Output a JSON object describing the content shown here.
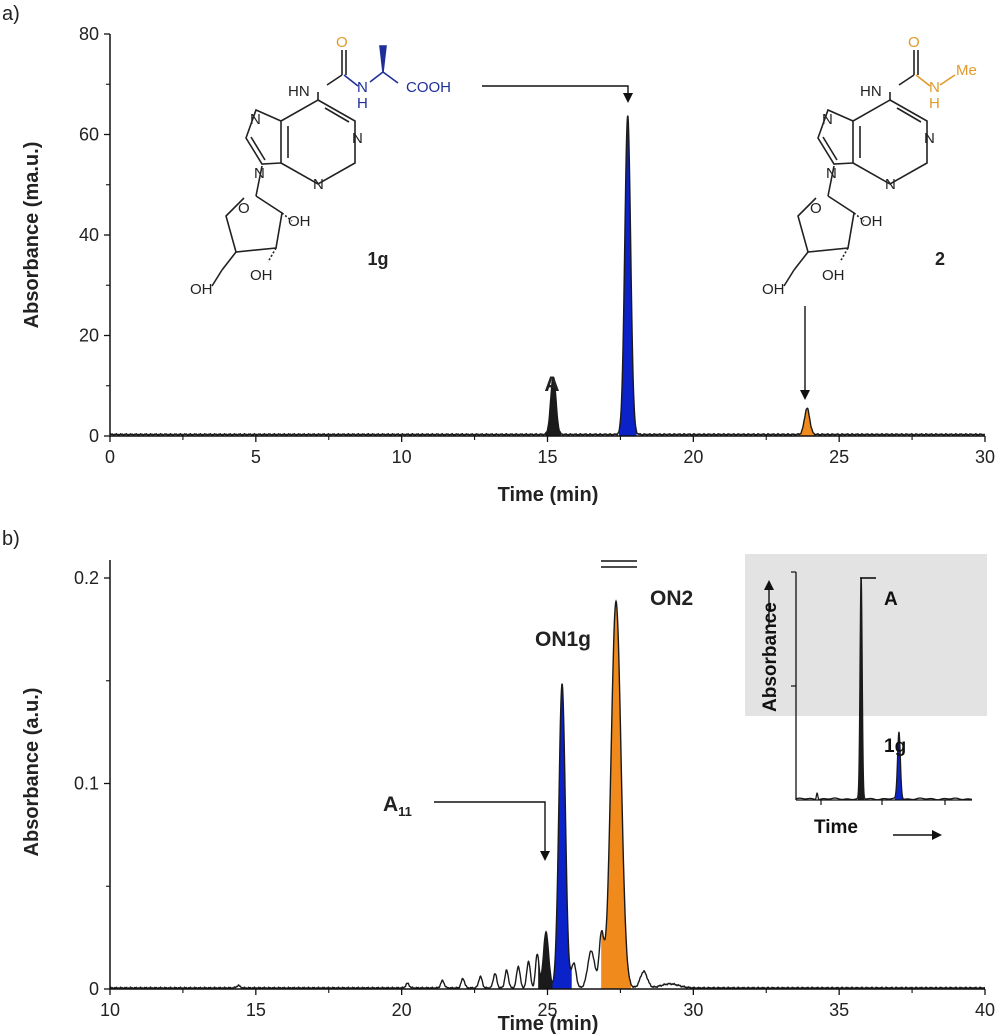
{
  "colors": {
    "trace": "#1a1a1a",
    "blue": "#0a22c8",
    "orange": "#f08a1c",
    "struct_blue": "#1f2f99",
    "struct_orange": "#e09a2a",
    "inset_bg": "#e3e3e3"
  },
  "chart_data": [
    {
      "panel": "a)",
      "type": "line",
      "xlabel": "Time (min)",
      "ylabel": "Absorbance (ma.u.)",
      "xlim": [
        0,
        30
      ],
      "ylim": [
        0,
        80
      ],
      "xticks": [
        0,
        5,
        10,
        15,
        20,
        25,
        30
      ],
      "yticks": [
        0,
        20,
        40,
        60,
        80
      ],
      "baseline": 0.3,
      "peaks": [
        {
          "label": "A",
          "x": 15.2,
          "height": 11.5,
          "width": 0.09,
          "fill": "trace"
        },
        {
          "label": "1g",
          "x": 17.75,
          "height": 63.5,
          "width": 0.1,
          "fill": "blue"
        },
        {
          "label": "2",
          "x": 23.9,
          "height": 5.2,
          "width": 0.09,
          "fill": "orange"
        }
      ],
      "annotations": {
        "peak_A": "A",
        "compound_1g": "1g",
        "compound_2": "2"
      },
      "structure_text": {
        "hn": "HN",
        "o": "O",
        "nh_h": "H",
        "n": "N",
        "cooh": "COOH",
        "me": "Me",
        "oh": "OH"
      }
    },
    {
      "panel": "b)",
      "type": "line",
      "xlabel": "Time (min)",
      "ylabel": "Absorbance (a.u.)",
      "xlim": [
        10,
        40
      ],
      "ylim": [
        0,
        0.2
      ],
      "xticks": [
        10,
        15,
        20,
        25,
        30,
        35,
        40
      ],
      "yticks": [
        0,
        0.1,
        0.2
      ],
      "ytick_labels": [
        "0",
        "0.1",
        "0.2"
      ],
      "baseline": 0.0005,
      "peaks": [
        {
          "label": "A11",
          "x": 24.95,
          "height": 0.027,
          "width": 0.09,
          "fill": "trace"
        },
        {
          "label": "ON1g",
          "x": 25.5,
          "height": 0.148,
          "width": 0.11,
          "fill": "blue"
        },
        {
          "label": "ON2",
          "x": 27.35,
          "height": 0.188,
          "width": 0.17,
          "fill": "orange",
          "truncated": true
        },
        {
          "x": 14.4,
          "height": 0.0012,
          "width": 0.06
        },
        {
          "x": 20.2,
          "height": 0.0022,
          "width": 0.06
        },
        {
          "x": 21.4,
          "height": 0.0035,
          "width": 0.06
        },
        {
          "x": 22.1,
          "height": 0.0045,
          "width": 0.06
        },
        {
          "x": 22.7,
          "height": 0.0055,
          "width": 0.06
        },
        {
          "x": 23.2,
          "height": 0.007,
          "width": 0.06
        },
        {
          "x": 23.6,
          "height": 0.0085,
          "width": 0.06
        },
        {
          "x": 24.0,
          "height": 0.0105,
          "width": 0.06
        },
        {
          "x": 24.35,
          "height": 0.013,
          "width": 0.06
        },
        {
          "x": 24.65,
          "height": 0.0165,
          "width": 0.06
        },
        {
          "x": 25.9,
          "height": 0.012,
          "width": 0.08
        },
        {
          "x": 26.5,
          "height": 0.018,
          "width": 0.12
        },
        {
          "x": 26.85,
          "height": 0.025,
          "width": 0.08
        },
        {
          "x": 28.3,
          "height": 0.008,
          "width": 0.12
        },
        {
          "x": 29.2,
          "height": 0.002,
          "width": 0.3
        }
      ],
      "annotations": {
        "peak_A11_base": "A",
        "peak_A11_sub": "11",
        "peak_ON1g": "ON1g",
        "peak_ON2": "ON2"
      },
      "inset": {
        "xlabel": "Time",
        "ylabel": "Absorbance",
        "peak_A": "A",
        "peak_1g": "1g",
        "peaks": [
          {
            "label": "A",
            "x": 0.37,
            "height": 1.0,
            "width": 0.006,
            "fill": "trace",
            "truncated": true
          },
          {
            "label": "1g",
            "x": 0.585,
            "height": 0.3,
            "width": 0.008,
            "fill": "blue"
          },
          {
            "x": 0.12,
            "height": 0.03,
            "width": 0.004
          }
        ]
      }
    }
  ]
}
